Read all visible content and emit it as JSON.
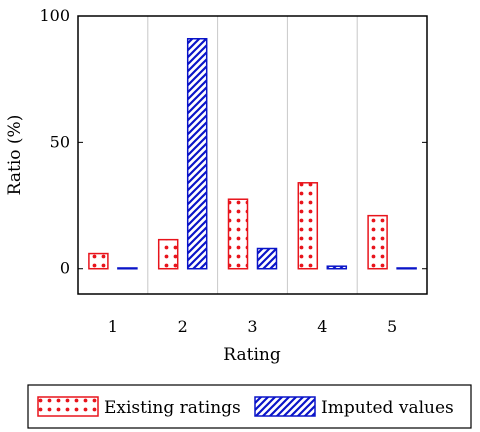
{
  "chart_data": {
    "type": "bar",
    "categories": [
      "1",
      "2",
      "3",
      "4",
      "5"
    ],
    "series": [
      {
        "name": "Existing ratings",
        "values": [
          6,
          11.5,
          27.5,
          34,
          21
        ],
        "color": "#e8141c",
        "pattern": "dots"
      },
      {
        "name": "Imputed values",
        "values": [
          0.3,
          91,
          8,
          1,
          0.3
        ],
        "color": "#0a14c8",
        "pattern": "diagonal-hatch"
      }
    ],
    "xlabel": "Rating",
    "ylabel": "Ratio (%)",
    "ylim": [
      -10,
      100
    ],
    "xlim": [
      0.5,
      5.5
    ],
    "yticks": [
      0,
      50,
      100
    ],
    "xticks": [
      "1",
      "2",
      "3",
      "4",
      "5"
    ],
    "grid": "vertical",
    "legend_position": "bottom-outside"
  }
}
